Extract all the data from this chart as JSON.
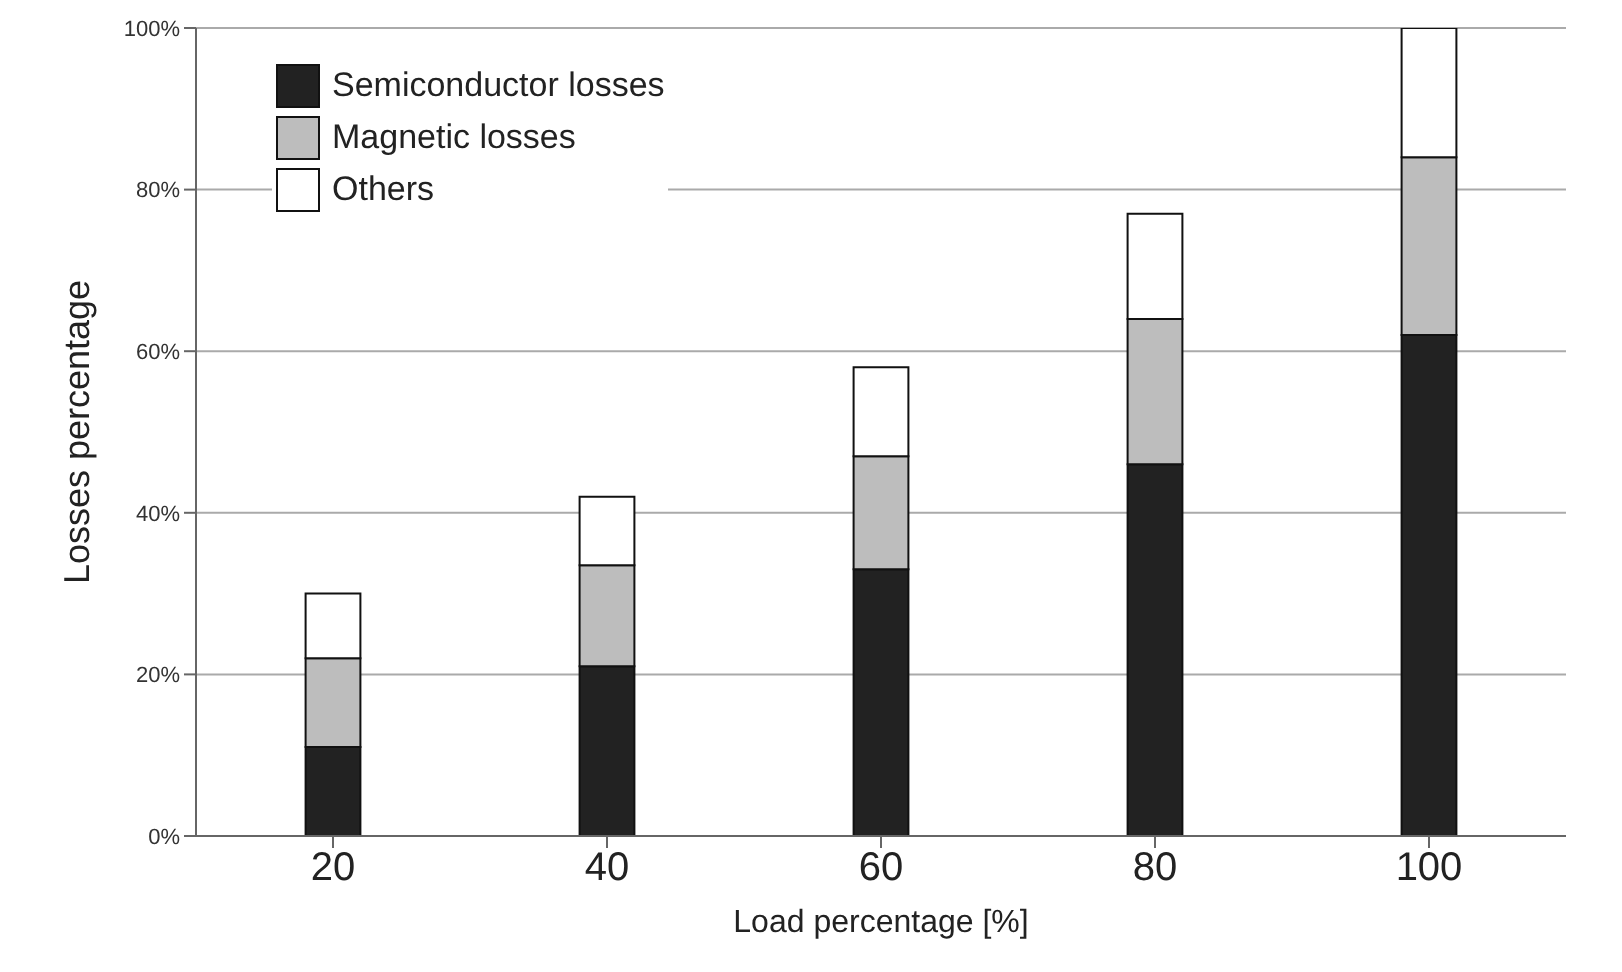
{
  "chart_data": {
    "type": "bar",
    "stacked": true,
    "xlabel": "Load percentage [%]",
    "ylabel": "Losses percentage",
    "categories": [
      "20",
      "40",
      "60",
      "80",
      "100"
    ],
    "series": [
      {
        "name": "Semiconductor losses",
        "color": "#222222",
        "values": [
          11,
          21,
          33,
          46,
          62
        ]
      },
      {
        "name": "Magnetic losses",
        "color": "#bdbdbd",
        "values": [
          11,
          12.5,
          14,
          18,
          22
        ]
      },
      {
        "name": "Others",
        "color": "#ffffff",
        "values": [
          8,
          8.5,
          11,
          13,
          16
        ]
      }
    ],
    "ylim": [
      0,
      100
    ],
    "yticks": [
      {
        "value": 0,
        "label": "0%"
      },
      {
        "value": 20,
        "label": "20%"
      },
      {
        "value": 40,
        "label": "40%"
      },
      {
        "value": 60,
        "label": "60%"
      },
      {
        "value": 80,
        "label": "80%"
      },
      {
        "value": 100,
        "label": "100%"
      }
    ],
    "grid": "y",
    "legend": "top left"
  }
}
